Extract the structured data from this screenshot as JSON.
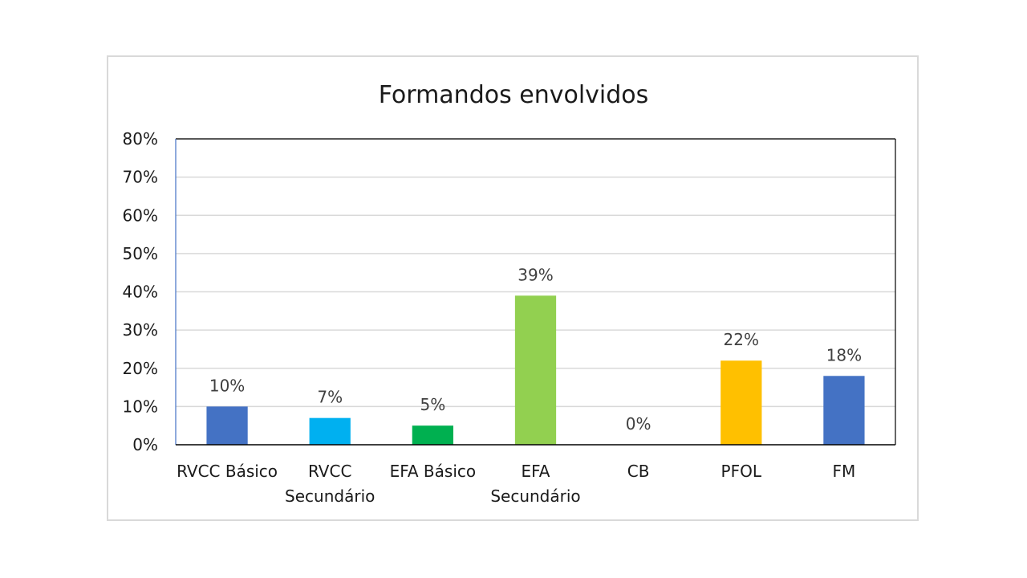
{
  "chart_data": {
    "type": "bar",
    "title": "Formandos envolvidos",
    "xlabel": "",
    "ylabel": "",
    "ylim": [
      0,
      80
    ],
    "y_ticks": [
      "0%",
      "10%",
      "20%",
      "30%",
      "40%",
      "50%",
      "60%",
      "70%",
      "80%"
    ],
    "y_tick_values": [
      0,
      10,
      20,
      30,
      40,
      50,
      60,
      70,
      80
    ],
    "grid": true,
    "legend": "none",
    "categories": [
      {
        "label": "RVCC Básico",
        "lines": [
          "RVCC Básico"
        ]
      },
      {
        "label": "RVCC Secundário",
        "lines": [
          "RVCC",
          "Secundário"
        ]
      },
      {
        "label": "EFA Básico",
        "lines": [
          "EFA Básico"
        ]
      },
      {
        "label": "EFA Secundário",
        "lines": [
          "EFA",
          "Secundário"
        ]
      },
      {
        "label": "CB",
        "lines": [
          "CB"
        ]
      },
      {
        "label": "PFOL",
        "lines": [
          "PFOL"
        ]
      },
      {
        "label": "FM",
        "lines": [
          "FM"
        ]
      }
    ],
    "values": [
      10,
      7,
      5,
      39,
      0,
      22,
      18
    ],
    "data_labels": [
      "10%",
      "7%",
      "5%",
      "39%",
      "0%",
      "22%",
      "18%"
    ],
    "colors": [
      "#4472c4",
      "#00b0f0",
      "#00b050",
      "#92d050",
      "#a5a5a5",
      "#ffc000",
      "#4472c4"
    ],
    "gridline_color": "#d9d9d9",
    "axis_color": "#000000"
  }
}
